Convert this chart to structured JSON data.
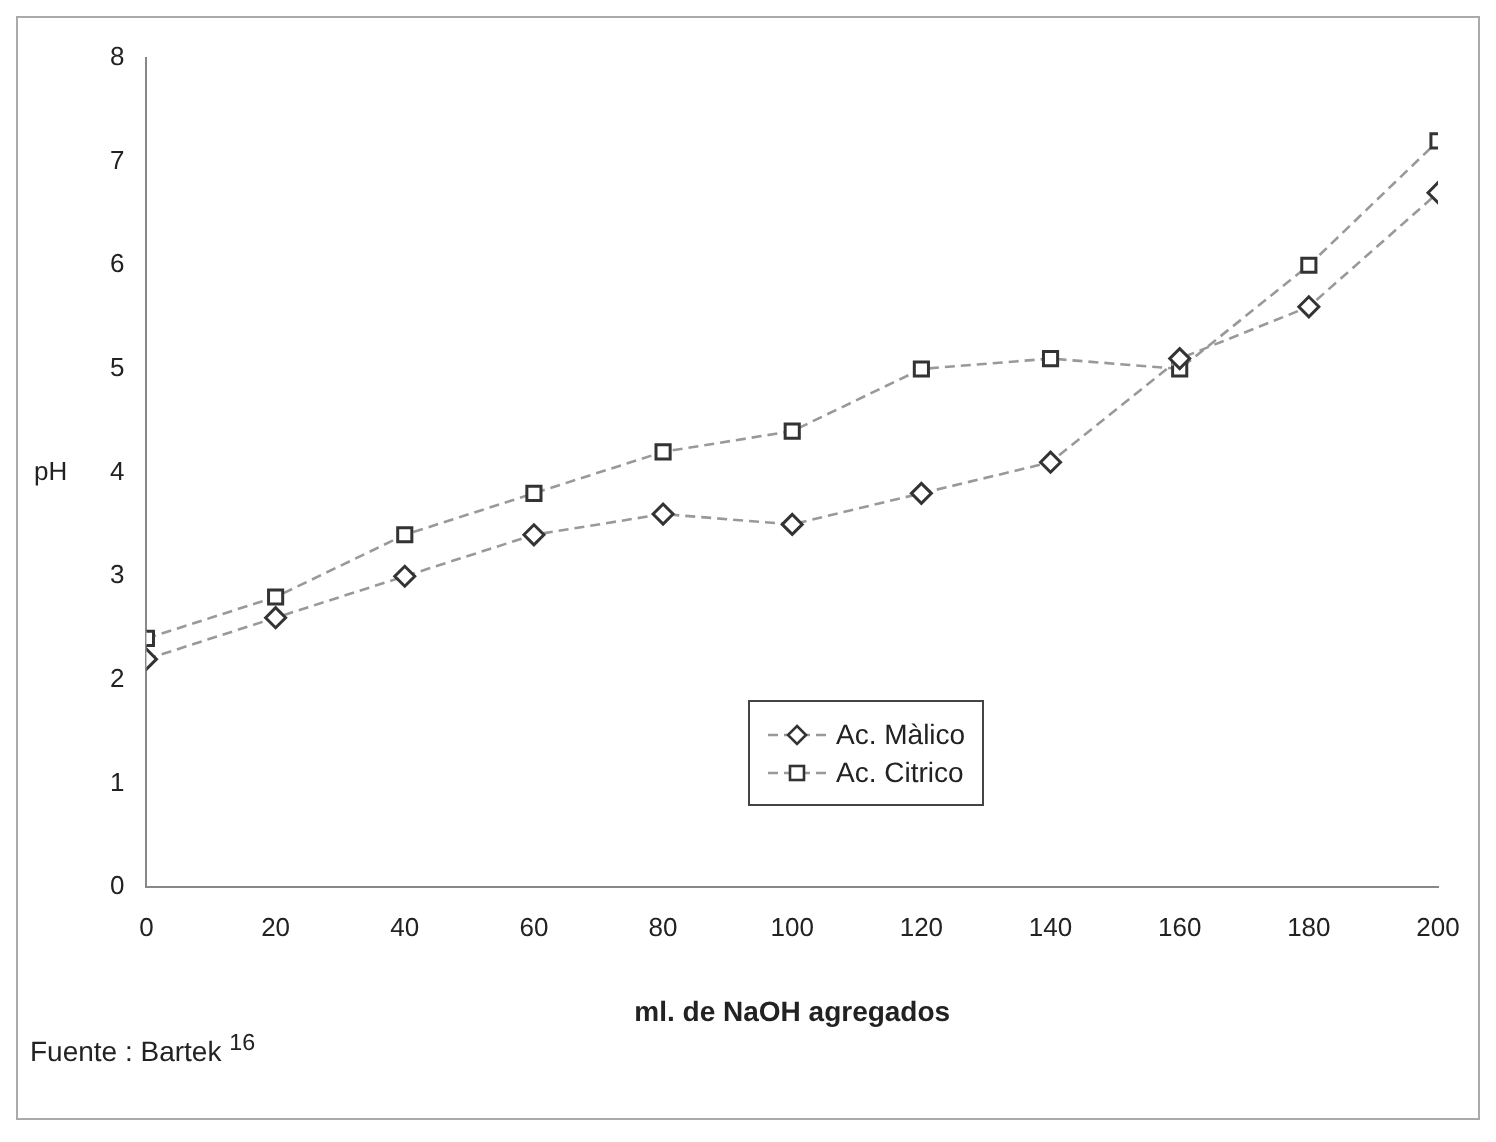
{
  "chart_data": {
    "type": "line",
    "xlabel": "ml. de NaOH agregados",
    "ylabel": "pH",
    "annotations": [
      "Fuente : Bartek $^{16}$"
    ],
    "x": [
      0,
      20,
      40,
      60,
      80,
      100,
      120,
      140,
      160,
      180,
      200
    ],
    "series": [
      {
        "name": "Ac. Màlico",
        "color": "#333333",
        "marker": "diamond",
        "values": [
          2.2,
          2.6,
          3.0,
          3.4,
          3.6,
          3.5,
          3.8,
          4.1,
          5.1,
          5.6,
          6.7
        ]
      },
      {
        "name": "Ac. Citrico",
        "color": "#333333",
        "marker": "square",
        "values": [
          2.4,
          2.8,
          3.4,
          3.8,
          4.2,
          4.4,
          5.0,
          5.1,
          5.0,
          6.0,
          7.2
        ]
      }
    ],
    "xlim": [
      0,
      200
    ],
    "xticks": [
      0,
      20,
      40,
      60,
      80,
      100,
      120,
      140,
      160,
      180,
      200
    ],
    "ylim": [
      0,
      8
    ],
    "yticks": [
      0,
      1,
      2,
      3,
      4,
      5,
      6,
      7,
      8
    ],
    "grid": false,
    "legend": "center right",
    "line_style": "dashed"
  }
}
